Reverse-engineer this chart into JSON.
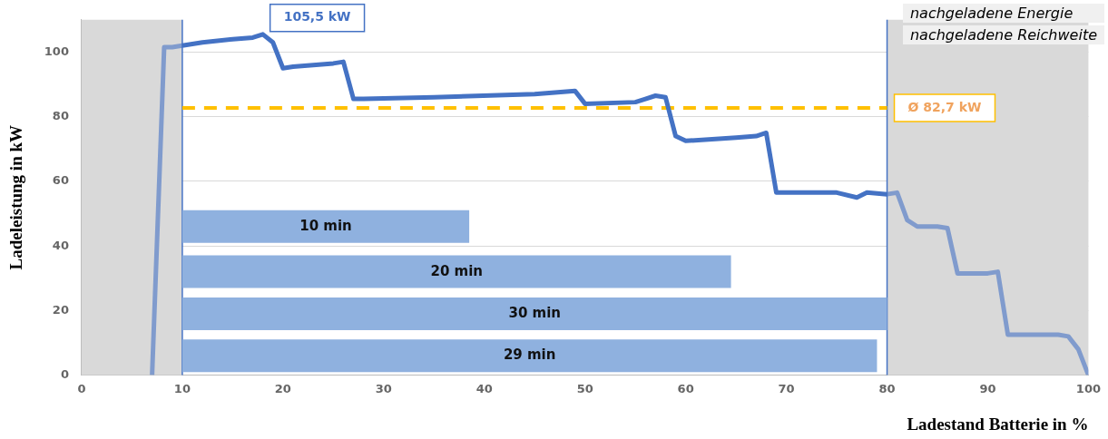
{
  "chart_data": {
    "type": "line",
    "xlabel": "Ladestand Batterie in %",
    "ylabel": "Ladeleistung in kW",
    "xlim": [
      0,
      100
    ],
    "xticks": [
      0,
      10,
      20,
      30,
      40,
      50,
      60,
      70,
      80,
      90,
      100
    ],
    "ylim": [
      0,
      110
    ],
    "yticks": [
      0,
      20,
      40,
      60,
      80,
      100
    ],
    "grid": "y",
    "legend": false,
    "marker": "none",
    "series": [
      {
        "color": "#4472c4",
        "line_style": "solid",
        "x": [
          7,
          8.2,
          9,
          10,
          12,
          15,
          17,
          18,
          19,
          20,
          21,
          25,
          26,
          27,
          28,
          35,
          45,
          49,
          50,
          55,
          56,
          57,
          58,
          59,
          60,
          65,
          67,
          68,
          69,
          70,
          75,
          77,
          78,
          80,
          81,
          82,
          83,
          85,
          86,
          87,
          88,
          90,
          91,
          92,
          93,
          97,
          98,
          99,
          100
        ],
        "values": [
          0,
          101.5,
          101.5,
          102,
          103,
          104,
          104.5,
          105.5,
          103,
          95,
          95.5,
          96.5,
          97,
          85.5,
          85.5,
          86,
          87,
          88,
          84,
          84.5,
          85.5,
          86.5,
          86,
          74,
          72.5,
          73.5,
          74,
          75,
          56.5,
          56.5,
          56.5,
          55,
          56.5,
          56,
          56.5,
          48,
          46,
          46,
          45.5,
          31.5,
          31.5,
          31.5,
          32,
          12.5,
          12.5,
          12.5,
          12,
          8,
          0
        ],
        "value_labels": [
          null,
          null,
          null,
          null,
          null,
          null,
          null,
          "105,5 kW",
          null,
          null,
          null,
          null,
          null,
          null,
          null,
          null,
          null,
          null,
          null,
          null,
          null,
          null,
          null,
          null,
          null,
          null,
          null,
          null,
          null,
          null,
          null,
          null,
          null,
          null,
          null,
          null,
          null,
          null,
          null,
          null,
          null,
          null,
          null,
          null,
          null,
          null,
          null,
          null,
          null
        ]
      },
      {
        "color": "#ffc000",
        "line_style": "dashed",
        "x": [
          10,
          80
        ],
        "values": [
          82.7,
          82.7
        ],
        "value_labels": [
          null,
          "Ø 82,7 kW"
        ]
      },
      {
        "type": "line",
        "color": "#8fb1df",
        "line_style": "solid",
        "x": [
          10,
          38.5
        ],
        "values": [
          46,
          46
        ]
      },
      {
        "type": "line",
        "color": "#8fb1df",
        "line_style": "solid",
        "x": [
          10,
          64.5
        ],
        "values": [
          32,
          32
        ]
      },
      {
        "type": "line",
        "color": "#8fb1df",
        "line_style": "solid",
        "x": [
          10,
          80
        ],
        "values": [
          19,
          19
        ]
      },
      {
        "type": "line",
        "color": "#8fb1df",
        "line_style": "solid",
        "x": [
          10,
          79
        ],
        "values": [
          6,
          6
        ]
      }
    ],
    "bands": [
      {
        "axis": "x",
        "from": 0,
        "to": 10,
        "color": "#d9d9d9"
      },
      {
        "axis": "x",
        "from": 80,
        "to": 100,
        "color": "#d9d9d9"
      }
    ],
    "ref_lines": [
      {
        "axis": "x",
        "value": 10,
        "color": "#4472c4"
      },
      {
        "axis": "x",
        "value": 80,
        "color": "#4472c4"
      }
    ],
    "annotations": [
      "nachgeladene Energie",
      "nachgeladene Reichweite",
      {
        "text": "10 min",
        "x": 24.25,
        "y": 46
      },
      {
        "text": "20 min",
        "x": 37.25,
        "y": 32
      },
      {
        "text": "30 min",
        "x": 45,
        "y": 19
      },
      {
        "text": "29 min",
        "x": 44.5,
        "y": 6
      }
    ]
  }
}
